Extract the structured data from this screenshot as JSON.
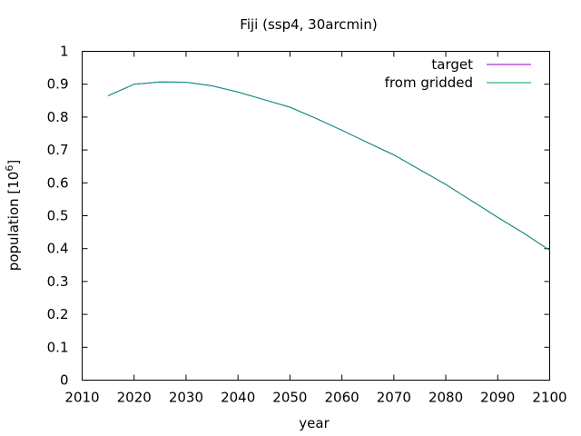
{
  "chart_data": {
    "type": "line",
    "title": "Fiji (ssp4, 30arcmin)",
    "xlabel": "year",
    "ylabel": "population [10",
    "ylabel_exponent": "6",
    "ylabel_suffix": "]",
    "xlim": [
      2010,
      2100
    ],
    "ylim": [
      0,
      1
    ],
    "xticks": [
      2010,
      2020,
      2030,
      2040,
      2050,
      2060,
      2070,
      2080,
      2090,
      2100
    ],
    "yticks": [
      0,
      0.1,
      0.2,
      0.3,
      0.4,
      0.5,
      0.6,
      0.7,
      0.8,
      0.9,
      1
    ],
    "ytick_labels": [
      "0",
      "0.1",
      "0.2",
      "0.3",
      "0.4",
      "0.5",
      "0.6",
      "0.7",
      "0.8",
      "0.9",
      "1"
    ],
    "grid": false,
    "legend_position": "top-right",
    "series": [
      {
        "name": "target",
        "color": "#9400d3",
        "x": [
          2015,
          2020,
          2025,
          2030,
          2035,
          2040,
          2045,
          2050,
          2055,
          2060,
          2065,
          2070,
          2075,
          2080,
          2085,
          2090,
          2095,
          2100
        ],
        "y": [
          0.865,
          0.9,
          0.907,
          0.906,
          0.895,
          0.876,
          0.853,
          0.83,
          0.796,
          0.76,
          0.722,
          0.685,
          0.64,
          0.595,
          0.545,
          0.495,
          0.447,
          0.395
        ]
      },
      {
        "name": "from gridded",
        "color": "#009e73",
        "x": [
          2015,
          2020,
          2025,
          2030,
          2035,
          2040,
          2045,
          2050,
          2055,
          2060,
          2065,
          2070,
          2075,
          2080,
          2085,
          2090,
          2095,
          2100
        ],
        "y": [
          0.865,
          0.9,
          0.907,
          0.906,
          0.895,
          0.876,
          0.853,
          0.83,
          0.796,
          0.76,
          0.722,
          0.685,
          0.64,
          0.595,
          0.545,
          0.495,
          0.447,
          0.395
        ]
      }
    ]
  }
}
